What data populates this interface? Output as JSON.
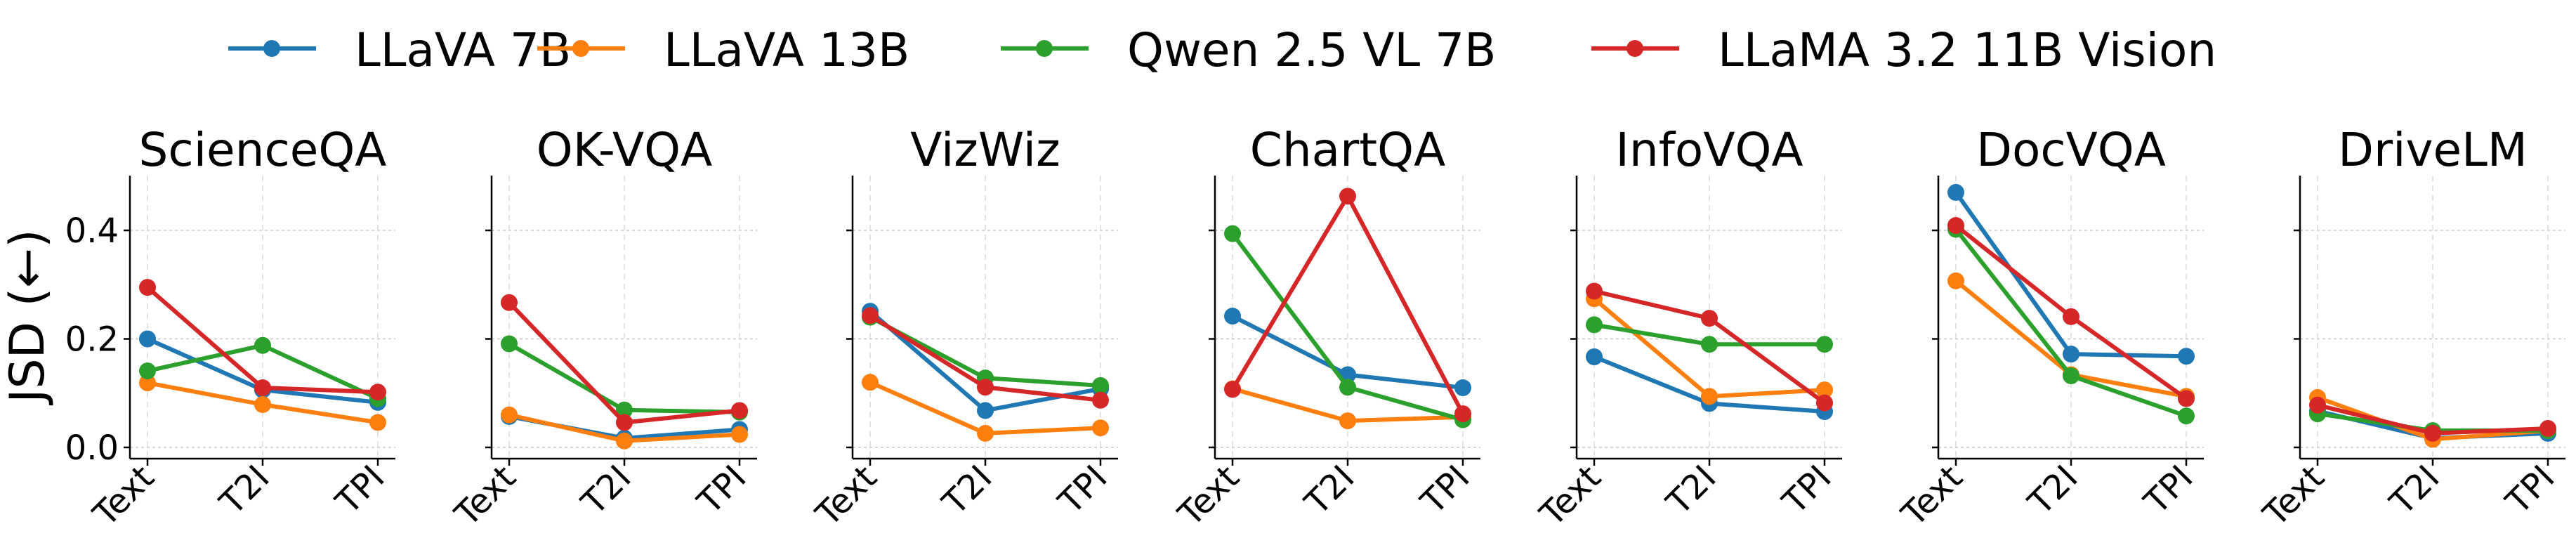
{
  "chart_data": {
    "type": "line",
    "ylabel": "JSD (←)",
    "ylim": [
      -0.022,
      0.502
    ],
    "yticks": [
      0.0,
      0.2,
      0.4
    ],
    "ytick_labels": [
      "0.0",
      "0.2",
      "0.4"
    ],
    "categories": [
      "Text",
      "T2I",
      "TPI"
    ],
    "grid": true,
    "legend_position": "top-center",
    "series_meta": [
      {
        "name": "LLaVA 7B",
        "color": "#1f77b4"
      },
      {
        "name": "LLaVA 13B",
        "color": "#ff7f0e"
      },
      {
        "name": "Qwen 2.5 VL 7B",
        "color": "#2ca02c"
      },
      {
        "name": "LLaMA 3.2 11B Vision",
        "color": "#d62728"
      }
    ],
    "panels": [
      {
        "title": "ScienceQA",
        "series": [
          [
            0.2,
            0.106,
            0.083
          ],
          [
            0.119,
            0.079,
            0.046
          ],
          [
            0.141,
            0.188,
            0.09
          ],
          [
            0.295,
            0.11,
            0.102
          ]
        ]
      },
      {
        "title": "OK-VQA",
        "series": [
          [
            0.057,
            0.017,
            0.033
          ],
          [
            0.06,
            0.012,
            0.024
          ],
          [
            0.191,
            0.069,
            0.065
          ],
          [
            0.267,
            0.046,
            0.068
          ]
        ]
      },
      {
        "title": "VizWiz",
        "series": [
          [
            0.251,
            0.068,
            0.108
          ],
          [
            0.12,
            0.026,
            0.036
          ],
          [
            0.24,
            0.128,
            0.114
          ],
          [
            0.243,
            0.111,
            0.087
          ]
        ]
      },
      {
        "title": "ChartQA",
        "series": [
          [
            0.242,
            0.134,
            0.11
          ],
          [
            0.108,
            0.049,
            0.056
          ],
          [
            0.394,
            0.111,
            0.051
          ],
          [
            0.107,
            0.463,
            0.062
          ]
        ]
      },
      {
        "title": "InfoVQA",
        "series": [
          [
            0.167,
            0.081,
            0.066
          ],
          [
            0.274,
            0.094,
            0.106
          ],
          [
            0.226,
            0.19,
            0.19
          ],
          [
            0.288,
            0.238,
            0.082
          ]
        ]
      },
      {
        "title": "DocVQA",
        "series": [
          [
            0.47,
            0.172,
            0.168
          ],
          [
            0.307,
            0.134,
            0.094
          ],
          [
            0.402,
            0.132,
            0.058
          ],
          [
            0.409,
            0.241,
            0.09
          ]
        ]
      },
      {
        "title": "DriveLM",
        "series": [
          [
            0.067,
            0.017,
            0.026
          ],
          [
            0.092,
            0.015,
            0.031
          ],
          [
            0.062,
            0.031,
            0.031
          ],
          [
            0.078,
            0.026,
            0.035
          ]
        ]
      }
    ]
  }
}
